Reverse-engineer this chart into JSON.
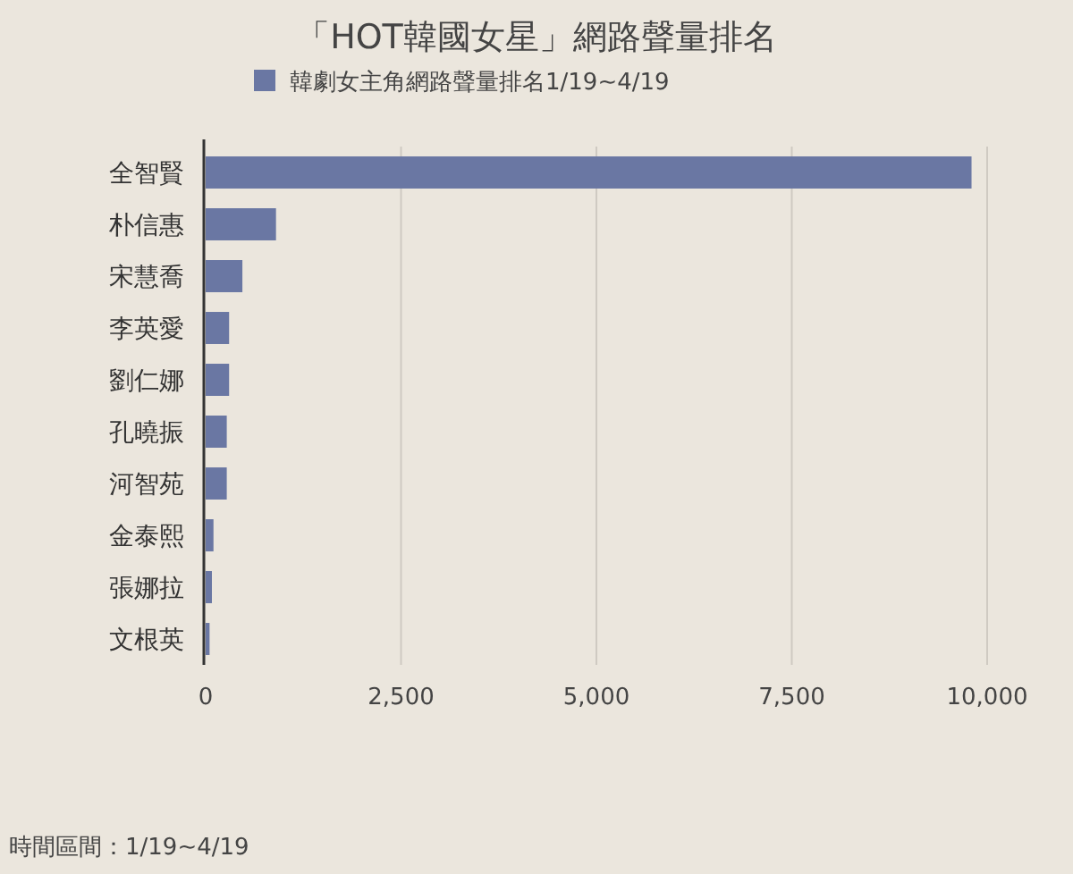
{
  "chart_data": {
    "type": "bar",
    "orientation": "horizontal",
    "title": "「HOT韓國女星」網路聲量排名",
    "categories": [
      "全智賢",
      "朴信惠",
      "宋慧喬",
      "李英愛",
      "劉仁娜",
      "孔曉振",
      "河智苑",
      "金泰熙",
      "張娜拉",
      "文根英"
    ],
    "series": [
      {
        "name": "韓劇女主角網路聲量排名1/19~4/19",
        "color": "#6a77a3",
        "values": [
          9800,
          900,
          470,
          300,
          300,
          270,
          270,
          100,
          80,
          50
        ]
      }
    ],
    "xlim": [
      0,
      10000
    ],
    "xticks": [
      0,
      {
        "value": 2500,
        "label": "2,500"
      },
      {
        "value": 5000,
        "label": "5,000"
      },
      {
        "value": 7500,
        "label": "7,500"
      },
      {
        "value": 10000,
        "label": "10,000"
      }
    ],
    "grid": "x",
    "legend": "top",
    "annotations": [
      "時間區間：1/19~4/19"
    ]
  }
}
